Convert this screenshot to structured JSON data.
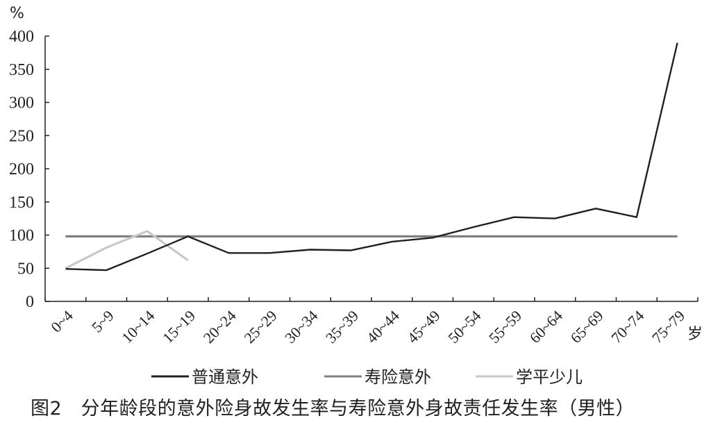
{
  "chart_data": {
    "type": "line",
    "y_unit": "%",
    "x_unit": "岁",
    "categories": [
      "0~4",
      "5~9",
      "10~14",
      "15~19",
      "20~24",
      "25~29",
      "30~34",
      "35~39",
      "40~44",
      "45~49",
      "50~54",
      "55~59",
      "60~64",
      "65~69",
      "70~74",
      "75~79"
    ],
    "ylim": [
      0,
      400
    ],
    "yticks": [
      0,
      50,
      100,
      150,
      200,
      250,
      300,
      350,
      400
    ],
    "grid": false,
    "legend_position": "bottom",
    "series": [
      {
        "name": "普通意外",
        "color": "#231f20",
        "values": [
          49,
          47,
          72,
          98,
          73,
          73,
          78,
          77,
          90,
          96,
          112,
          127,
          125,
          140,
          127,
          390
        ]
      },
      {
        "name": "寿险意外",
        "color": "#808080",
        "values": [
          98,
          98,
          98,
          98,
          98,
          98,
          98,
          98,
          98,
          98,
          98,
          98,
          98,
          98,
          98,
          98
        ]
      },
      {
        "name": "学平少儿",
        "color": "#c8c8c8",
        "values": [
          50,
          81,
          106,
          62,
          null,
          null,
          null,
          null,
          null,
          null,
          null,
          null,
          null,
          null,
          null,
          null
        ]
      }
    ]
  },
  "caption": "图2　分年龄段的意外险身故发生率与寿险意外身故责任发生率（男性）"
}
